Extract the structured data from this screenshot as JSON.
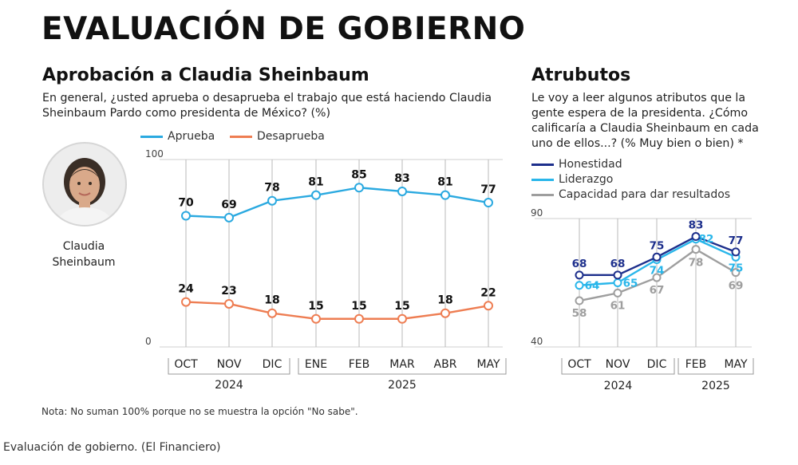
{
  "header": {
    "title": "EVALUACIÓN DE GOBIERNO"
  },
  "left_panel": {
    "title": "Aprobación a Claudia Sheinbaum",
    "question": "En general, ¿usted aprueba o desaprueba el trabajo que está haciendo Claudia Sheinbaum Pardo como presidenta de México?  (%)",
    "person": {
      "name_line1": "Claudia",
      "name_line2": "Sheinbaum",
      "photo_icon": "portrait-photo"
    }
  },
  "right_panel": {
    "title": "Atrubutos",
    "question": "Le voy a leer algunos atributos que la gente espera de la presidenta. ¿Cómo calificaría a Claudia Sheinbaum en cada uno de ellos...? (% Muy bien o bien) *"
  },
  "note": "Nota: No suman 100% porque no se muestra la opción \"No sabe\".",
  "caption": "Evaluación de gobierno. (El Financiero)",
  "chart_data": [
    {
      "type": "line",
      "title": "Aprobación a Claudia Sheinbaum",
      "categories": [
        "OCT",
        "NOV",
        "DIC",
        "ENE",
        "FEB",
        "MAR",
        "ABR",
        "MAY"
      ],
      "year_groups": [
        {
          "label": "2024",
          "categories": [
            "OCT",
            "NOV",
            "DIC"
          ]
        },
        {
          "label": "2025",
          "categories": [
            "ENE",
            "FEB",
            "MAR",
            "ABR",
            "MAY"
          ]
        }
      ],
      "ylim": [
        0,
        100
      ],
      "y_ticks": [
        0,
        100
      ],
      "legend_position": "top-left",
      "series": [
        {
          "name": "Aprueba",
          "color": "#2aa9e0",
          "values": [
            70,
            69,
            78,
            81,
            85,
            83,
            81,
            77
          ]
        },
        {
          "name": "Desaprueba",
          "color": "#ee7d52",
          "values": [
            24,
            23,
            18,
            15,
            15,
            15,
            18,
            22
          ]
        }
      ]
    },
    {
      "type": "line",
      "title": "Atrubutos",
      "categories": [
        "OCT",
        "NOV",
        "DIC",
        "FEB",
        "MAY"
      ],
      "year_groups": [
        {
          "label": "2024",
          "categories": [
            "OCT",
            "NOV",
            "DIC"
          ]
        },
        {
          "label": "2025",
          "categories": [
            "FEB",
            "MAY"
          ]
        }
      ],
      "ylim": [
        40,
        90
      ],
      "y_ticks": [
        40,
        90
      ],
      "legend_position": "top-left",
      "series": [
        {
          "name": "Honestidad",
          "color": "#1d2f8c",
          "values": [
            68,
            68,
            75,
            83,
            77
          ]
        },
        {
          "name": "Liderazgo",
          "color": "#29b6ea",
          "values": [
            64,
            65,
            74,
            82,
            75
          ]
        },
        {
          "name": "Capacidad para dar resultados",
          "color": "#9e9e9e",
          "values": [
            58,
            61,
            67,
            78,
            69
          ]
        }
      ]
    }
  ]
}
